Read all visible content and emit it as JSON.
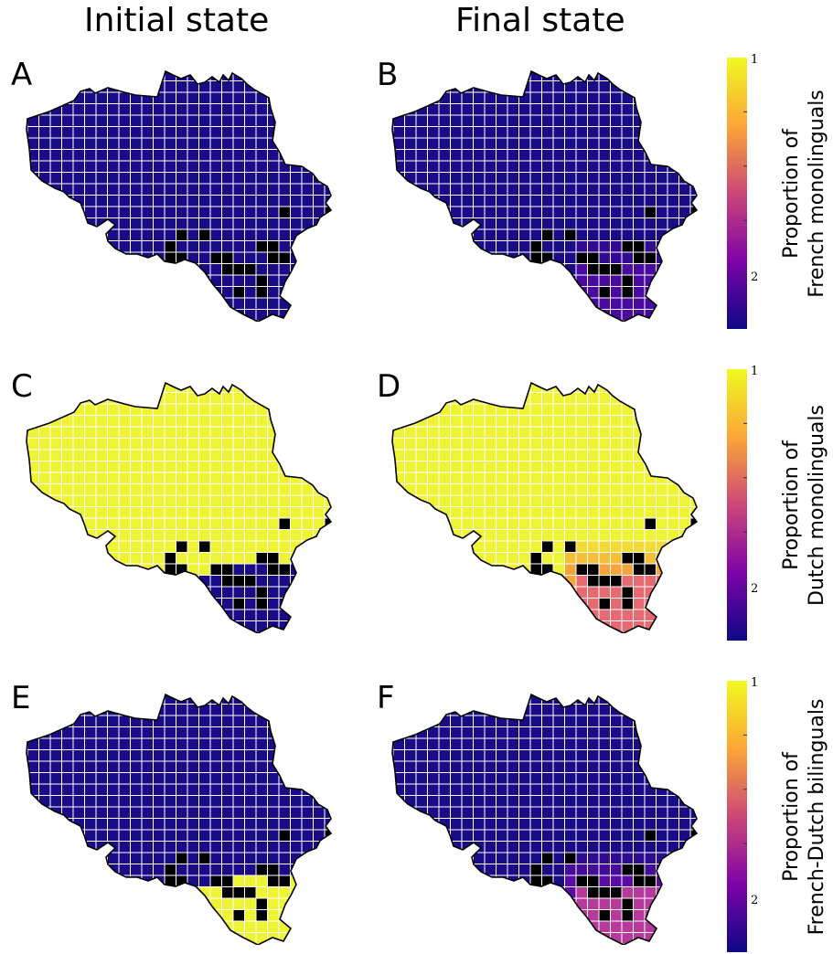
{
  "column_titles": {
    "left": "Initial state",
    "right": "Final state"
  },
  "panels": [
    {
      "letter": "A",
      "fill": "uniform",
      "base": "#1a0c86"
    },
    {
      "letter": "B",
      "fill": "gradient",
      "base": "#1a0c86",
      "south": "#4a0aa0"
    },
    {
      "letter": "C",
      "fill": "split",
      "base": "#eef333",
      "south": "#1a0c86"
    },
    {
      "letter": "D",
      "fill": "gradient",
      "base": "#eef333",
      "mid": "#f8a43c",
      "south": "#e56a72"
    },
    {
      "letter": "E",
      "fill": "split",
      "base": "#1a0c86",
      "south": "#eef333"
    },
    {
      "letter": "F",
      "fill": "gradient",
      "base": "#1a0c86",
      "mid": "#5a0ca4",
      "south": "#b63a9c"
    }
  ],
  "colorbars": [
    {
      "label_line1": "Proportion of",
      "label_line2": "French monolinguals",
      "tick_top": "1",
      "tick_bottom": "2"
    },
    {
      "label_line1": "Proportion of",
      "label_line2": "Dutch monolinguals",
      "tick_top": "1",
      "tick_bottom": "2"
    },
    {
      "label_line1": "Proportion of",
      "label_line2": "French-Dutch bilinguals",
      "tick_top": "1",
      "tick_bottom": "2"
    }
  ],
  "colors": {
    "blocked": "#000000",
    "grid": "#ffffff",
    "cbar_top": "#f0f921",
    "cbar_mid": "#cc4778",
    "cbar_bottom": "#0d0887"
  }
}
